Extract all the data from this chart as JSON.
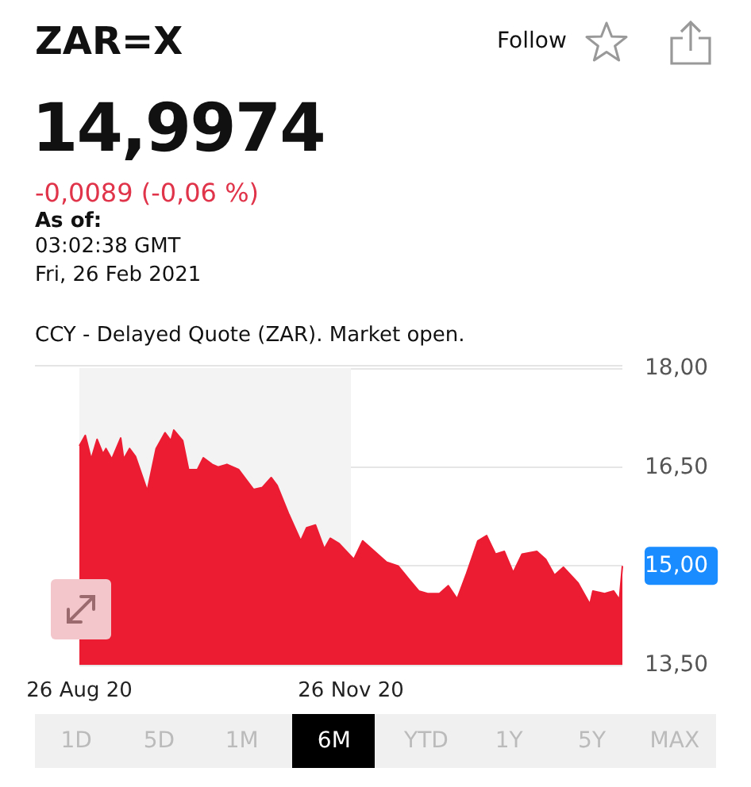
{
  "chart_data": {
    "type": "area",
    "title": "ZAR=X",
    "subtitle": "14,9974",
    "annotations": [
      "-0,0089 (-0,06 %)",
      "As of:",
      "03:02:38 GMT",
      "Fri, 26 Feb 2021",
      "CCY - Delayed Quote (ZAR). Market open.",
      "Follow",
      "1D",
      "5D",
      "1M",
      "6M",
      "YTD",
      "1Y",
      "5Y",
      "MAX"
    ],
    "x": [
      "2020-08-26",
      "2020-08-28",
      "2020-08-30",
      "2020-09-01",
      "2020-09-03",
      "2020-09-04",
      "2020-09-06",
      "2020-09-09",
      "2020-09-10",
      "2020-09-12",
      "2020-09-14",
      "2020-09-18",
      "2020-09-21",
      "2020-09-24",
      "2020-09-26",
      "2020-09-27",
      "2020-09-30",
      "2020-10-02",
      "2020-10-05",
      "2020-10-07",
      "2020-10-10",
      "2020-10-12",
      "2020-10-15",
      "2020-10-19",
      "2020-10-24",
      "2020-10-27",
      "2020-10-30",
      "2020-11-01",
      "2020-11-05",
      "2020-11-09",
      "2020-11-11",
      "2020-11-14",
      "2020-11-17",
      "2020-11-19",
      "2020-11-22",
      "2020-11-27",
      "2020-11-30",
      "2020-12-04",
      "2020-12-08",
      "2020-12-12",
      "2020-12-16",
      "2020-12-19",
      "2020-12-22",
      "2020-12-26",
      "2020-12-29",
      "2021-01-01",
      "2021-01-04",
      "2021-01-08",
      "2021-01-11",
      "2021-01-14",
      "2021-01-17",
      "2021-01-20",
      "2021-01-23",
      "2021-01-28",
      "2021-01-31",
      "2021-02-03",
      "2021-02-06",
      "2021-02-11",
      "2021-02-15",
      "2021-02-16",
      "2021-02-20",
      "2021-02-23",
      "2021-02-25",
      "2021-02-26"
    ],
    "series": [
      {
        "color": "#ec1c33",
        "values": [
          16.82,
          16.98,
          16.62,
          16.92,
          16.7,
          16.78,
          16.62,
          16.94,
          16.62,
          16.78,
          16.66,
          16.14,
          16.78,
          17.02,
          16.9,
          17.06,
          16.9,
          16.46,
          16.46,
          16.64,
          16.54,
          16.5,
          16.54,
          16.46,
          16.16,
          16.19,
          16.34,
          16.22,
          15.78,
          15.38,
          15.58,
          15.62,
          15.26,
          15.42,
          15.34,
          15.1,
          15.38,
          15.22,
          15.06,
          15.0,
          14.78,
          14.62,
          14.58,
          14.58,
          14.7,
          14.5,
          14.86,
          15.38,
          15.46,
          15.18,
          15.22,
          14.9,
          15.18,
          15.22,
          15.1,
          14.86,
          14.98,
          14.74,
          14.42,
          14.62,
          14.58,
          14.62,
          14.49,
          15.0
        ]
      }
    ],
    "xlim": [
      "2020-08-26",
      "2021-02-26"
    ],
    "xticks": [
      {
        "value": "2020-08-26",
        "label": "26 Aug 20"
      },
      {
        "value": "2020-11-26",
        "label": "26 Nov 20"
      }
    ],
    "ylim": [
      13.5,
      18
    ],
    "yticks": [
      {
        "value": 13.5,
        "label": "13,50"
      },
      {
        "value": 15,
        "label": "15,00"
      },
      {
        "value": 16.5,
        "label": "16,50"
      },
      {
        "value": 18,
        "label": "18,00"
      }
    ],
    "bands": [
      {
        "axis": "x",
        "from": "2020-08-26",
        "to": "2020-11-26",
        "color": "#f3f3f3"
      }
    ],
    "grid": "y",
    "marker": "none"
  }
}
